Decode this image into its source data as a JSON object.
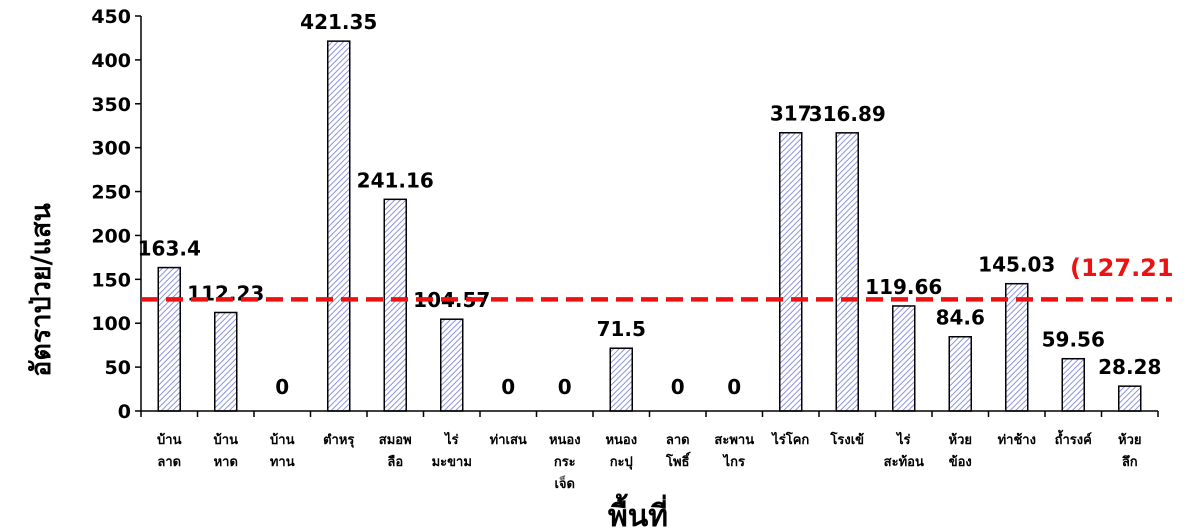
{
  "chart_data": {
    "type": "bar",
    "title": "",
    "xlabel": "พื้นที่",
    "ylabel": "อัตราป่วย/แสน",
    "ylim": [
      0,
      450
    ],
    "yticks": [
      0,
      50,
      100,
      150,
      200,
      250,
      300,
      350,
      400,
      450
    ],
    "grid": false,
    "categories": [
      [
        "บ้าน",
        "ลาด"
      ],
      [
        "บ้าน",
        "หาด"
      ],
      [
        "บ้าน",
        "ทาน"
      ],
      [
        "ตำหรุ"
      ],
      [
        "สมอพ",
        "ลือ"
      ],
      [
        "ไร่",
        "มะขาม"
      ],
      [
        "ท่าเสน"
      ],
      [
        "หนอง",
        "กระ",
        "เจ็ด"
      ],
      [
        "หนอง",
        "กะปุ"
      ],
      [
        "ลาด",
        "โพธิ์"
      ],
      [
        "สะพาน",
        "ไกร"
      ],
      [
        "ไร่โคก"
      ],
      [
        "โรงเข้"
      ],
      [
        "ไร่",
        "สะท้อน"
      ],
      [
        "ห้วย",
        "ข้อง"
      ],
      [
        "ท่าช้าง"
      ],
      [
        "ถ้ำรงค์"
      ],
      [
        "ห้วย",
        "ลึก"
      ]
    ],
    "values": [
      163.4,
      112.23,
      0,
      421.35,
      241.16,
      104.57,
      0,
      0,
      71.5,
      0,
      0,
      317,
      316.89,
      119.66,
      84.6,
      145.03,
      59.56,
      28.28
    ],
    "data_labels": [
      "163.4",
      "112.23",
      "0",
      "421.35",
      "241.16",
      "104.57",
      "0",
      "0",
      "71.5",
      "0",
      "0",
      "317",
      "316.89",
      "119.66",
      "84.6",
      "145.03",
      "59.56",
      "28.28"
    ],
    "reference_line": {
      "value": 127.21,
      "label": "(127.21",
      "color": "#ee1111",
      "style": "dashed"
    },
    "bar_fill": "#c9cdf0",
    "bar_stroke": "#000000"
  }
}
